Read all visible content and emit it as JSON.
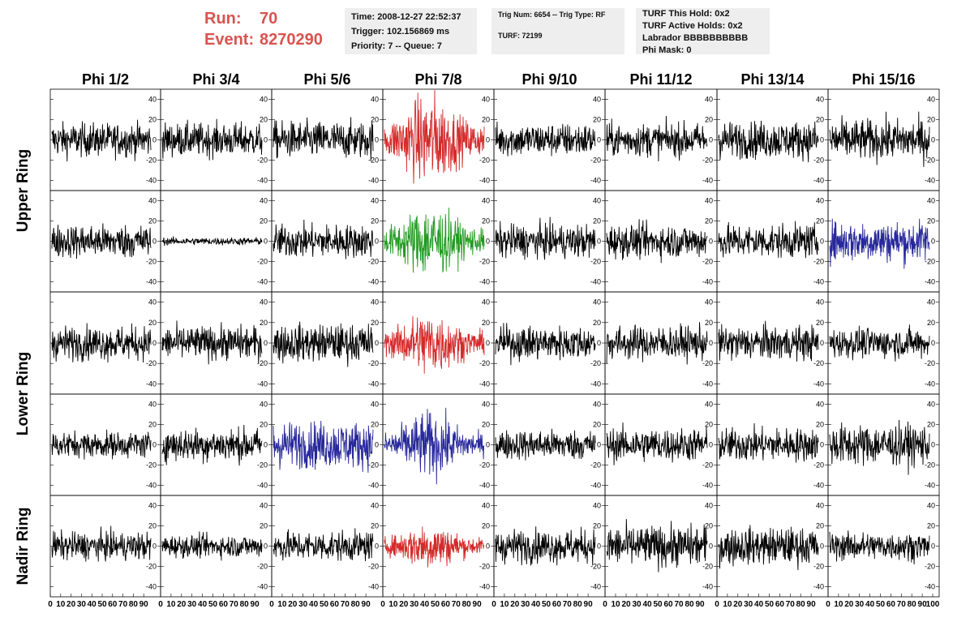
{
  "run_info": {
    "run_label": "Run:",
    "run_value": "70",
    "event_label": "Event:",
    "event_value": "8270290"
  },
  "info_boxes": {
    "time": "Time: 2008-12-27 22:52:37",
    "trigger": "Trigger: 102.156869 ms",
    "priority": "Priority: 7 -- Queue: 7",
    "trig_num": "Trig Num: 6654 -- Trig Type: RF",
    "turf": "TURF: 72199",
    "turf_this_hold": "TURF This Hold: 0x2",
    "turf_active_holds": "TURF Active Holds: 0x2",
    "labrador": "Labrador BBBBBBBBBB",
    "phi_mask": "Phi Mask: 0"
  },
  "colors": {
    "run_text": "#d9534f",
    "trace_default": "#000000",
    "trace_red": "#d42a2a",
    "trace_green": "#1f9a1f",
    "trace_blue": "#27279c"
  },
  "chart_data": {
    "type": "line",
    "columns": [
      "Phi 1/2",
      "Phi 3/4",
      "Phi 5/6",
      "Phi 7/8",
      "Phi 9/10",
      "Phi 11/12",
      "Phi 13/14",
      "Phi 15/16"
    ],
    "ring_labels": [
      "Upper Ring",
      "Lower Ring",
      "Nadir Ring"
    ],
    "rows": 5,
    "xlim": [
      0,
      100
    ],
    "ylim": [
      -50,
      50
    ],
    "y_ticks": [
      40,
      20,
      0,
      -20,
      -40
    ],
    "x_ticks": [
      0,
      10,
      20,
      30,
      40,
      50,
      60,
      70,
      80,
      90,
      100
    ],
    "grid": false,
    "highlighted_panels": [
      {
        "row": 0,
        "col": 3,
        "color": "red"
      },
      {
        "row": 1,
        "col": 3,
        "color": "green"
      },
      {
        "row": 1,
        "col": 7,
        "color": "blue"
      },
      {
        "row": 2,
        "col": 3,
        "color": "red"
      },
      {
        "row": 3,
        "col": 2,
        "color": "blue"
      },
      {
        "row": 3,
        "col": 3,
        "color": "blue"
      },
      {
        "row": 4,
        "col": 3,
        "color": "red"
      }
    ],
    "panel_amplitude": [
      [
        18,
        18,
        20,
        35,
        18,
        18,
        20,
        22
      ],
      [
        18,
        4,
        18,
        28,
        18,
        18,
        18,
        22
      ],
      [
        18,
        18,
        20,
        25,
        18,
        18,
        18,
        16
      ],
      [
        14,
        18,
        25,
        25,
        16,
        18,
        18,
        22
      ],
      [
        15,
        12,
        16,
        18,
        18,
        22,
        20,
        15
      ]
    ]
  }
}
